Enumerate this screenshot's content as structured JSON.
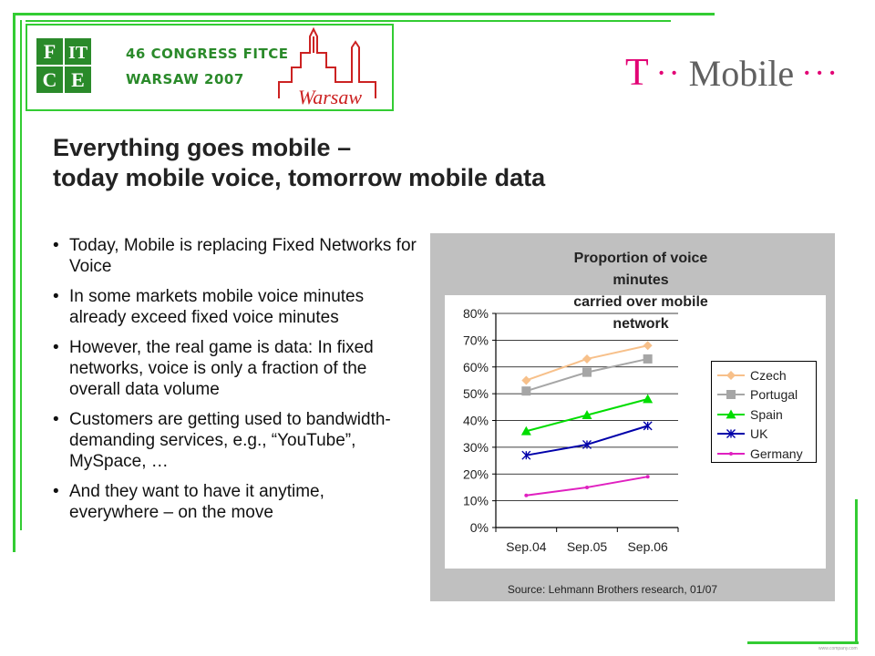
{
  "header": {
    "fitce_letters": "FITCE",
    "congress_line1": "46 CONGRESS FITCE",
    "congress_line2": "WARSAW 2007",
    "warsaw_text": "Warsaw",
    "brand": {
      "t": "T",
      "dots1": "··",
      "mobile": "Mobile",
      "dots2": "···"
    }
  },
  "title": {
    "line1": "Everything goes mobile –",
    "line2": "today mobile voice, tomorrow mobile data"
  },
  "bullets": [
    "Today, Mobile is replacing Fixed Networks for Voice",
    "In some markets mobile voice minutes already exceed fixed voice minutes",
    "However, the real game is data: In fixed networks, voice is only a fraction of the overall data volume",
    "Customers are getting used to bandwidth-demanding services, e.g., “YouTube”, MySpace, …",
    "And they want to have it anytime, everywhere – on the move"
  ],
  "colors": {
    "frame_green": "#33cc33",
    "magenta": "#e20074",
    "panel_gray": "#c0c0c0"
  },
  "chart_data": {
    "type": "line",
    "title": "Proportion of voice minutes carried over mobile network",
    "title_lines": [
      "Proportion of voice",
      "minutes",
      "carried over mobile",
      "network"
    ],
    "categories": [
      "Sep.04",
      "Sep.05",
      "Sep.06"
    ],
    "y_ticks": [
      "0%",
      "10%",
      "20%",
      "30%",
      "40%",
      "50%",
      "60%",
      "70%",
      "80%"
    ],
    "ylim": [
      0,
      80
    ],
    "grid": true,
    "legend_position": "right",
    "series": [
      {
        "name": "Czech",
        "values": [
          55,
          63,
          68
        ],
        "color": "#f7c08a",
        "marker": "diamond"
      },
      {
        "name": "Portugal",
        "values": [
          51,
          58,
          63
        ],
        "color": "#a6a6a6",
        "marker": "square"
      },
      {
        "name": "Spain",
        "values": [
          36,
          42,
          48
        ],
        "color": "#00dd00",
        "marker": "triangle"
      },
      {
        "name": "UK",
        "values": [
          27,
          31,
          38
        ],
        "color": "#0000aa",
        "marker": "star"
      },
      {
        "name": "Germany",
        "values": [
          12,
          15,
          19
        ],
        "color": "#e020c0",
        "marker": "dot"
      }
    ],
    "source": "Source: Lehmann Brothers research, 01/07"
  },
  "footer_tiny": "www.company.com"
}
